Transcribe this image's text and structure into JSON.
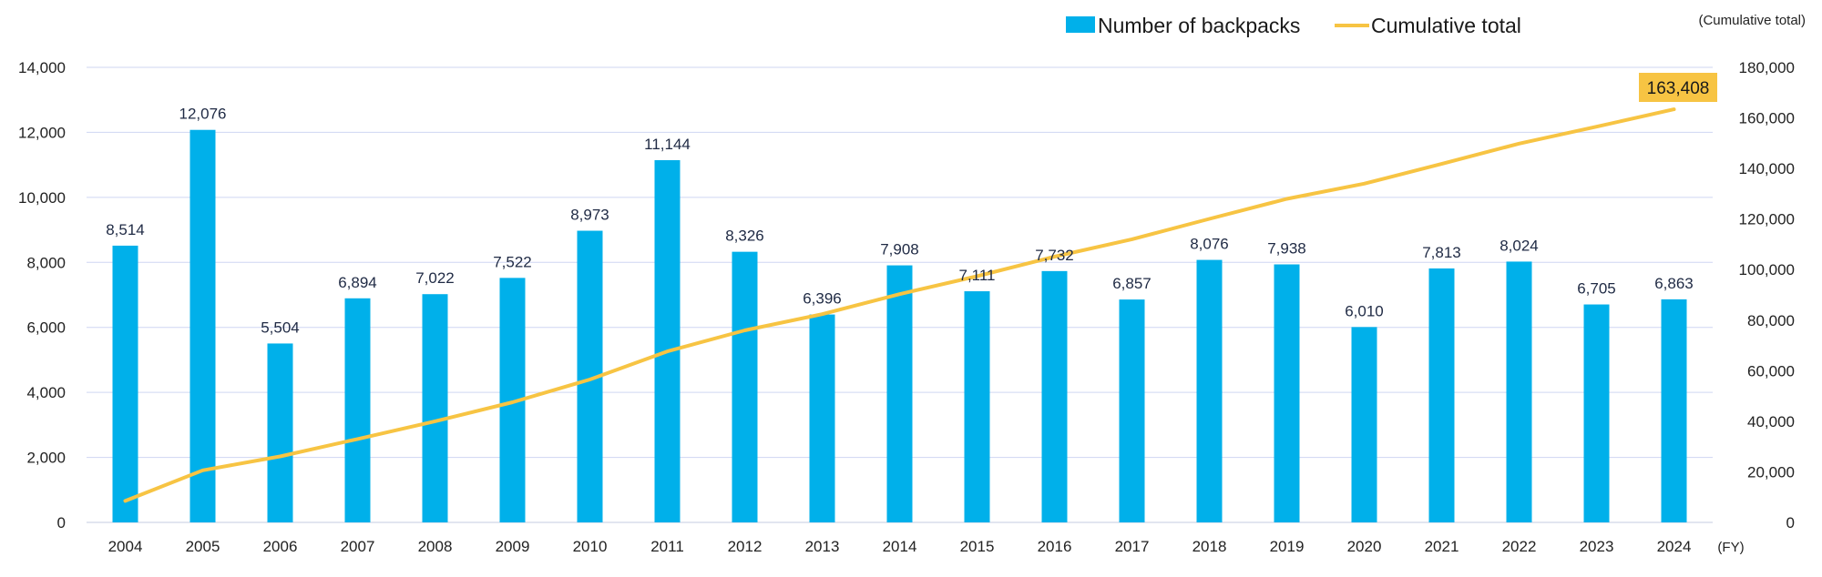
{
  "chart_data": {
    "type": "bar+line",
    "x_unit": "(FY)",
    "categories": [
      "2004",
      "2005",
      "2006",
      "2007",
      "2008",
      "2009",
      "2010",
      "2011",
      "2012",
      "2013",
      "2014",
      "2015",
      "2016",
      "2017",
      "2018",
      "2019",
      "2020",
      "2021",
      "2022",
      "2023",
      "2024"
    ],
    "series": [
      {
        "name": "Number of backpacks",
        "type": "bar",
        "axis": "left",
        "color": "#00b0ea",
        "values": [
          8514,
          12076,
          5504,
          6894,
          7022,
          7522,
          8973,
          11144,
          8326,
          6396,
          7908,
          7111,
          7732,
          6857,
          8076,
          7938,
          6010,
          7813,
          8024,
          6705,
          6863
        ],
        "labels": [
          "8,514",
          "12,076",
          "5,504",
          "6,894",
          "7,022",
          "7,522",
          "8,973",
          "11,144",
          "8,326",
          "6,396",
          "7,908",
          "7,111",
          "7,732",
          "6,857",
          "8,076",
          "7,938",
          "6,010",
          "7,813",
          "8,024",
          "6,705",
          "6,863"
        ]
      },
      {
        "name": "Cumulative total",
        "type": "line",
        "axis": "right",
        "color": "#f7c443",
        "values": [
          8514,
          20590,
          26094,
          32988,
          40010,
          47532,
          56505,
          67649,
          75975,
          82371,
          90279,
          97390,
          105122,
          111979,
          120055,
          127993,
          134003,
          141816,
          149840,
          156545,
          163408
        ],
        "final_label": "163,408"
      }
    ],
    "y_left": {
      "range": [
        0,
        14000
      ],
      "ticks": [
        "0",
        "2,000",
        "4,000",
        "6,000",
        "8,000",
        "10,000",
        "12,000",
        "14,000"
      ]
    },
    "y_right": {
      "range": [
        0,
        180000
      ],
      "label": "(Cumulative total)",
      "ticks": [
        "0",
        "20,000",
        "40,000",
        "60,000",
        "80,000",
        "100,000",
        "120,000",
        "140,000",
        "160,000",
        "180,000"
      ]
    },
    "grid": "horizontal",
    "legend_position": "top-right",
    "colors": {
      "grid": "#cfd6f2",
      "final_badge": "#f7c443"
    }
  }
}
